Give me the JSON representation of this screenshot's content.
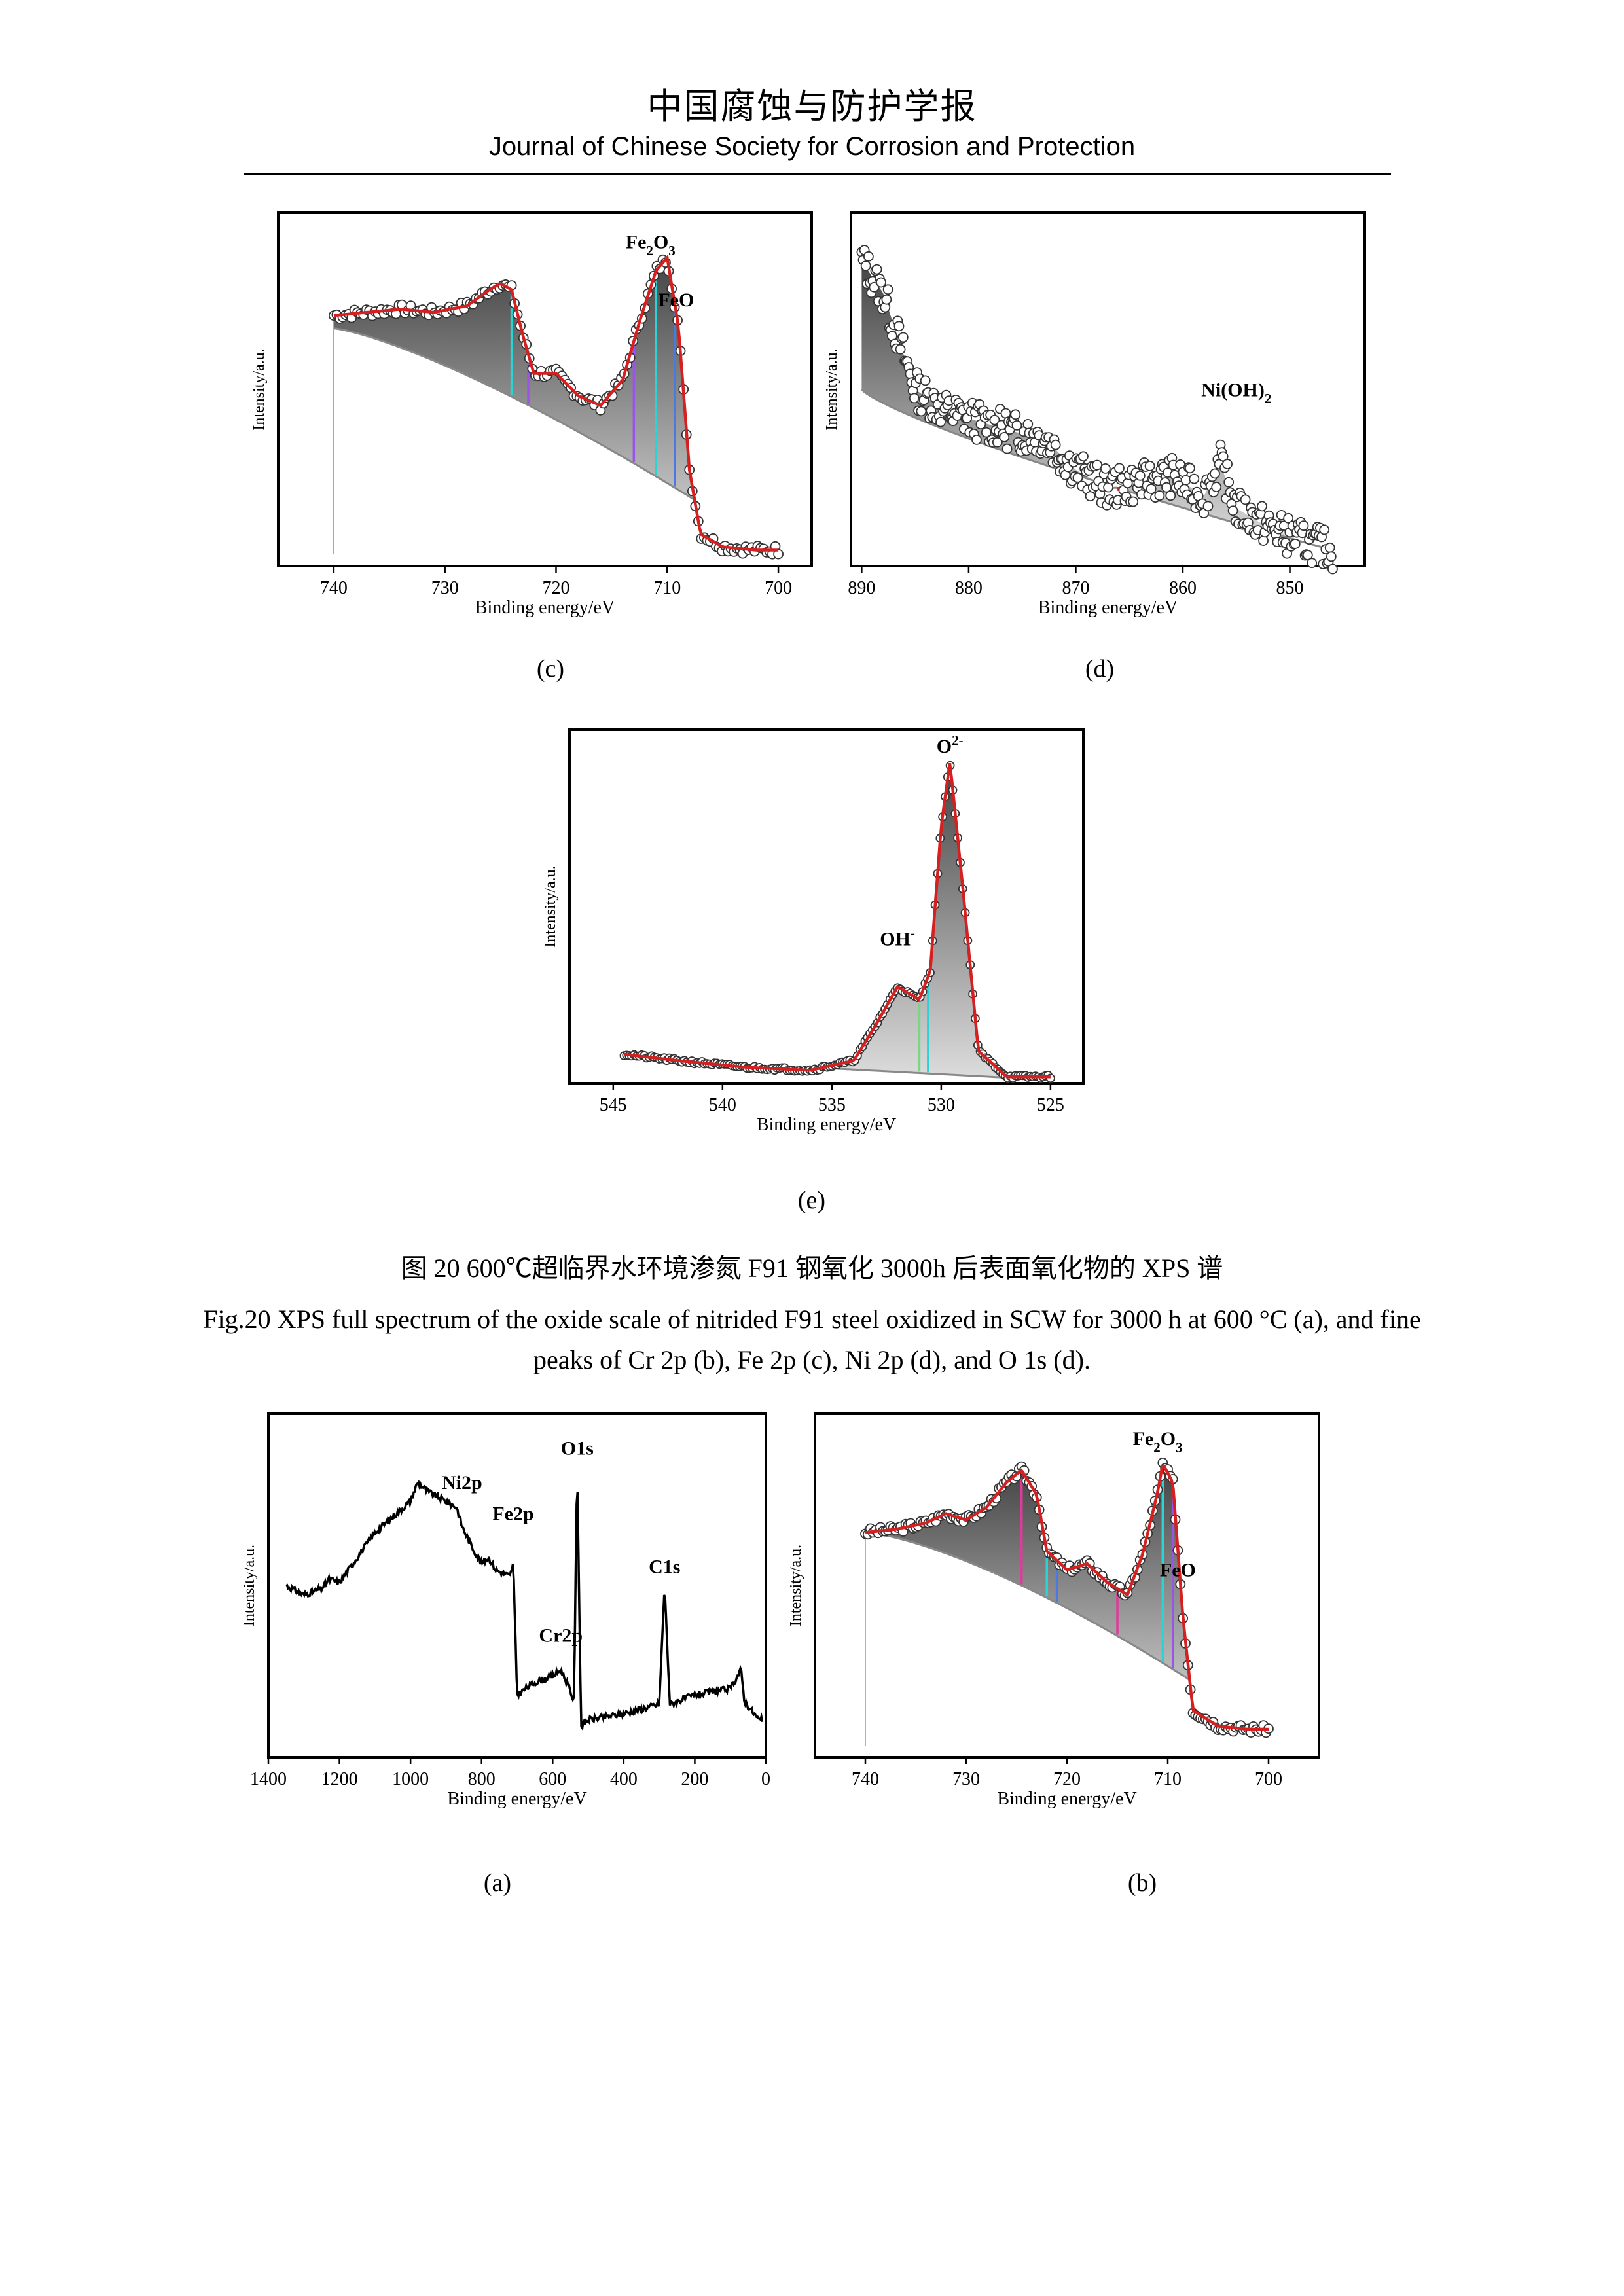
{
  "header": {
    "journal_cn": "中国腐蚀与防护学报",
    "journal_en": "Journal of Chinese Society for Corrosion and Protection"
  },
  "figure": {
    "caption_cn": "图 20 600℃超临界水环境渗氮 F91 钢氧化 3000h 后表面氧化物的 XPS 谱",
    "caption_en": "Fig.20 XPS full spectrum of the oxide scale of nitrided F91 steel oxidized in SCW for 3000 h at 600 °C (a), and fine peaks of Cr 2p (b), Fe 2p (c), Ni 2p (d), and O 1s (d)."
  },
  "colors": {
    "fit": "#d42020",
    "data_marker": "#333333",
    "background_line": "#888888",
    "fill_gray": "#5a5a5a",
    "cyan": "#2ad4d4",
    "purple": "#9a55e8",
    "magenta": "#e03a9a",
    "blue": "#4a7ae0",
    "green": "#7ad48a"
  },
  "chart_data": [
    {
      "panel": "(c)",
      "type": "scatter",
      "xlabel": "Binding energy/eV",
      "ylabel": "Intensity/a.u.",
      "xlim": [
        745,
        697
      ],
      "ylim": [
        0,
        1.1
      ],
      "xticks": [
        740,
        730,
        720,
        710,
        700
      ],
      "annotations": [
        {
          "text": "Fe2O3",
          "x": 711.5,
          "y": 0.96
        },
        {
          "text": "FeO",
          "x": 709.2,
          "y": 0.78
        }
      ],
      "x": [
        740,
        737,
        734,
        731,
        728,
        726,
        725,
        724,
        723,
        722,
        720,
        718,
        716,
        714,
        712.5,
        711,
        710,
        709,
        708,
        707,
        705,
        702,
        700
      ],
      "y": [
        0.78,
        0.79,
        0.8,
        0.79,
        0.81,
        0.86,
        0.88,
        0.86,
        0.72,
        0.6,
        0.6,
        0.53,
        0.5,
        0.58,
        0.76,
        0.92,
        0.96,
        0.75,
        0.3,
        0.1,
        0.06,
        0.05,
        0.05
      ]
    },
    {
      "panel": "(d)",
      "type": "scatter",
      "xlabel": "Binding energy/eV",
      "ylabel": "Intensity/a.u.",
      "xlim": [
        891,
        843
      ],
      "ylim": [
        0,
        1.1
      ],
      "xticks": [
        890,
        880,
        870,
        860,
        850
      ],
      "annotations": [
        {
          "text": "Ni(OH)2",
          "x": 855,
          "y": 0.5
        }
      ],
      "x": [
        890,
        888,
        885,
        882,
        879,
        876,
        873,
        870,
        867,
        864,
        861,
        858,
        856.5,
        855,
        852,
        849,
        846
      ],
      "y": [
        0.95,
        0.85,
        0.55,
        0.48,
        0.45,
        0.42,
        0.4,
        0.3,
        0.24,
        0.26,
        0.28,
        0.22,
        0.32,
        0.18,
        0.12,
        0.08,
        0.05
      ]
    },
    {
      "panel": "(e)",
      "type": "scatter",
      "xlabel": "Binding energy/eV",
      "ylabel": "Intensity/a.u.",
      "xlim": [
        547,
        523.5
      ],
      "ylim": [
        0,
        1.1
      ],
      "xticks": [
        545,
        540,
        535,
        530,
        525
      ],
      "annotations": [
        {
          "text": "O2-",
          "x": 529.6,
          "y": 1.0
        },
        {
          "text": "OH-",
          "x": 532,
          "y": 0.4
        }
      ],
      "x": [
        544.5,
        542,
        539,
        536,
        534,
        533,
        532,
        531,
        530.5,
        530,
        529.6,
        529,
        528.3,
        527,
        525
      ],
      "y": [
        0.09,
        0.07,
        0.05,
        0.04,
        0.07,
        0.18,
        0.3,
        0.26,
        0.35,
        0.8,
        1.0,
        0.6,
        0.1,
        0.02,
        0.02
      ]
    },
    {
      "panel": "(a)",
      "type": "line",
      "xlabel": "Binding energy/eV",
      "ylabel": "Intensity/a.u.",
      "xlim": [
        1400,
        0
      ],
      "ylim": [
        0,
        1.1
      ],
      "xticks": [
        1400,
        1200,
        1000,
        800,
        600,
        400,
        200,
        0
      ],
      "annotations": [
        {
          "text": "O1s",
          "x": 531,
          "y": 0.94
        },
        {
          "text": "Ni2p",
          "x": 855,
          "y": 0.83
        },
        {
          "text": "Fe2p",
          "x": 711,
          "y": 0.73
        },
        {
          "text": "C1s",
          "x": 285,
          "y": 0.56
        },
        {
          "text": "Cr2p",
          "x": 577,
          "y": 0.34
        }
      ],
      "x": [
        1350,
        1300,
        1250,
        1230,
        1200,
        1100,
        1000,
        980,
        950,
        900,
        870,
        855,
        830,
        800,
        780,
        760,
        720,
        711,
        700,
        650,
        600,
        577,
        560,
        540,
        531,
        520,
        500,
        400,
        300,
        285,
        270,
        200,
        100,
        70,
        60,
        20,
        10
      ],
      "y": [
        0.55,
        0.52,
        0.54,
        0.57,
        0.56,
        0.72,
        0.82,
        0.88,
        0.85,
        0.82,
        0.8,
        0.74,
        0.68,
        0.62,
        0.64,
        0.6,
        0.58,
        0.62,
        0.2,
        0.24,
        0.26,
        0.28,
        0.24,
        0.18,
        0.94,
        0.1,
        0.12,
        0.14,
        0.17,
        0.55,
        0.17,
        0.2,
        0.22,
        0.28,
        0.18,
        0.12,
        0.12
      ]
    },
    {
      "panel": "(b)",
      "type": "scatter",
      "xlabel": "Binding energy/eV",
      "ylabel": "Intensity/a.u.",
      "xlim": [
        745,
        695
      ],
      "ylim": [
        0,
        1.1
      ],
      "xticks": [
        740,
        730,
        720,
        710,
        700
      ],
      "annotations": [
        {
          "text": "Fe2O3",
          "x": 711,
          "y": 0.97
        },
        {
          "text": "FeO",
          "x": 709,
          "y": 0.55
        }
      ],
      "x": [
        740,
        737,
        734,
        732,
        730,
        728,
        726,
        724.5,
        723,
        722,
        720,
        718,
        716,
        714,
        712.5,
        711,
        710.5,
        709.5,
        708.5,
        707.5,
        705,
        702,
        700
      ],
      "y": [
        0.72,
        0.73,
        0.75,
        0.78,
        0.76,
        0.8,
        0.88,
        0.92,
        0.84,
        0.66,
        0.6,
        0.62,
        0.56,
        0.52,
        0.65,
        0.85,
        0.94,
        0.88,
        0.45,
        0.15,
        0.1,
        0.09,
        0.09
      ]
    }
  ]
}
